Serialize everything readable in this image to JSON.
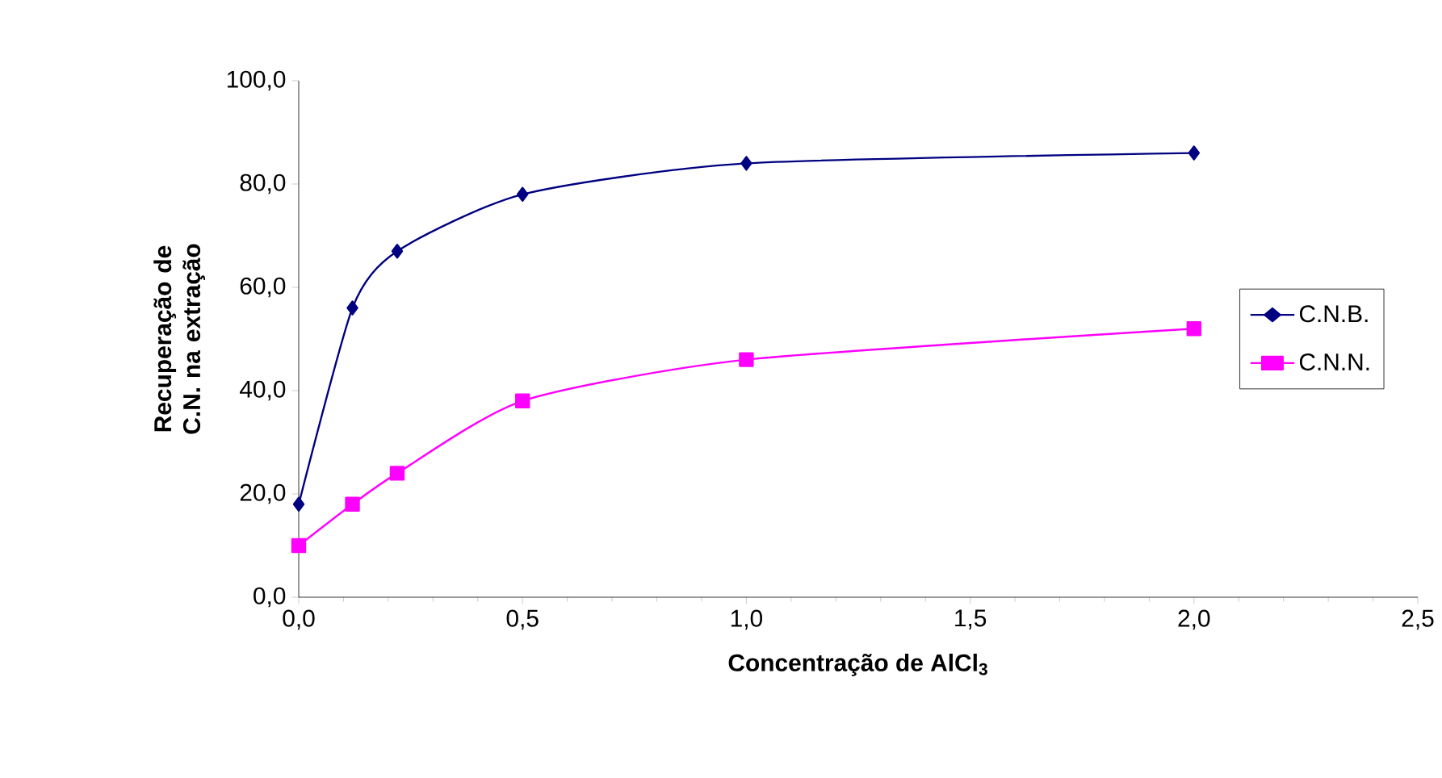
{
  "chart_data": {
    "type": "line",
    "xlabel": "Concentração de AlCl$_{3}$",
    "ylabel": "Recuperação de C.N. na extração",
    "xlim": [
      0,
      2.5
    ],
    "ylim": [
      0,
      100
    ],
    "xticks": [
      {
        "value": 0,
        "label": "0,0"
      },
      {
        "value": 0.5,
        "label": "0,5"
      },
      {
        "value": 1,
        "label": "1,0"
      },
      {
        "value": 1.5,
        "label": "1,5"
      },
      {
        "value": 2,
        "label": "2,0"
      },
      {
        "value": 2.5,
        "label": "2,5"
      }
    ],
    "yticks": [
      {
        "value": 0,
        "label": "0,0"
      },
      {
        "value": 20,
        "label": "20,0"
      },
      {
        "value": 40,
        "label": "40,0"
      },
      {
        "value": 60,
        "label": "60,0"
      },
      {
        "value": 80,
        "label": "80,0"
      },
      {
        "value": 100,
        "label": "100,0"
      }
    ],
    "series": [
      {
        "name": "C.N.B.",
        "color": "#000080",
        "marker": "diamond",
        "x": [
          0,
          0.12,
          0.22,
          0.5,
          1,
          2
        ],
        "values": [
          18,
          56,
          67,
          78,
          84,
          86
        ]
      },
      {
        "name": "C.N.N.",
        "color": "#ff00ff",
        "marker": "square",
        "x": [
          0,
          0.12,
          0.22,
          0.5,
          1,
          2
        ],
        "values": [
          10,
          18,
          24,
          38,
          46,
          52
        ]
      }
    ],
    "legend": "right",
    "line_style": "solid",
    "grid": false
  }
}
